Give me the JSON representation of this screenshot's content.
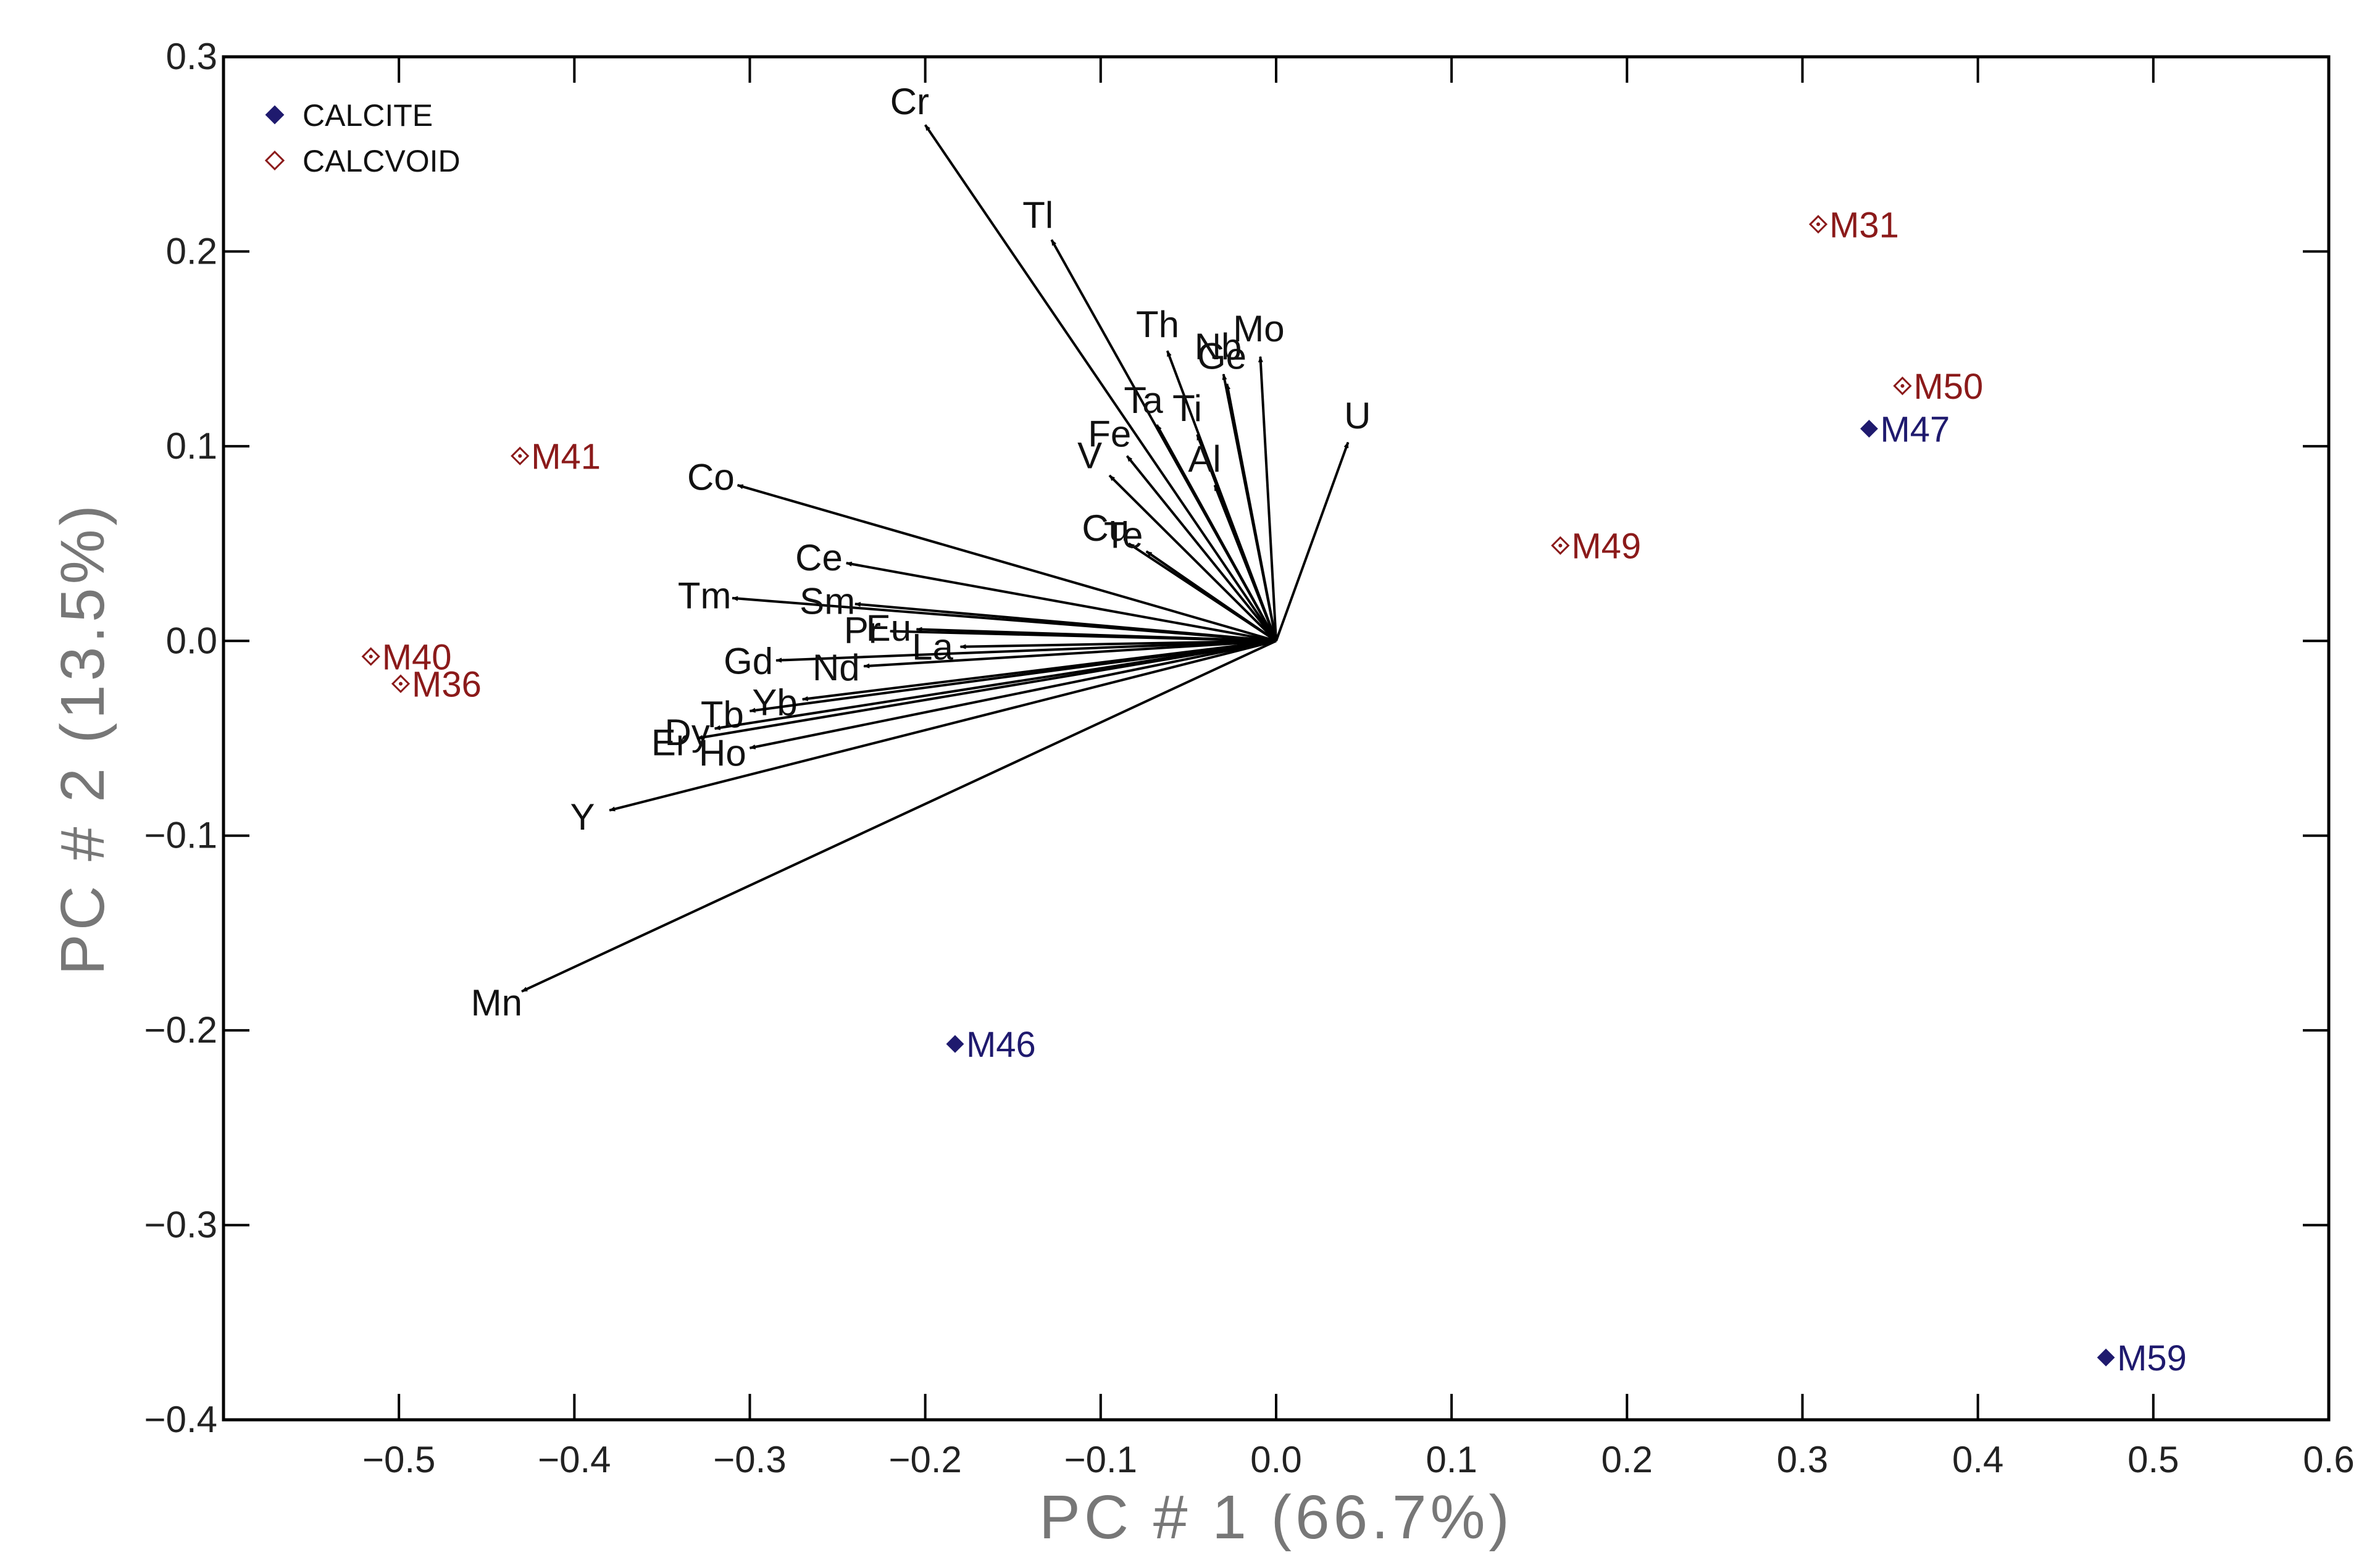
{
  "chart_data": {
    "type": "scatter",
    "subtype": "pca-biplot",
    "title": "",
    "xlabel": "PC # 1 (66.7%)",
    "ylabel": "PC # 2 (13.5%)",
    "xlim": [
      -0.6,
      0.6
    ],
    "ylim": [
      -0.4,
      0.3
    ],
    "xticks": [
      -0.5,
      -0.4,
      -0.3,
      -0.2,
      -0.1,
      0.0,
      0.1,
      0.2,
      0.3,
      0.4,
      0.5,
      0.6
    ],
    "xtick_labels": [
      "−0.5",
      "−0.4",
      "−0.3",
      "−0.2",
      "−0.1",
      "0.0",
      "0.1",
      "0.2",
      "0.3",
      "0.4",
      "0.5",
      "0.6"
    ],
    "yticks": [
      -0.4,
      -0.3,
      -0.2,
      -0.1,
      0.0,
      0.1,
      0.2,
      0.3
    ],
    "ytick_labels": [
      "−0.4",
      "−0.3",
      "−0.2",
      "−0.1",
      "0.0",
      "0.1",
      "0.2",
      "0.3"
    ],
    "grid": false,
    "legend_position": "top-left",
    "legend": [
      {
        "name": "CALCITE",
        "marker": "filled-diamond",
        "color": "#1f1a6e"
      },
      {
        "name": "CALCVOID",
        "marker": "open-diamond",
        "color": "#8b1a1a"
      }
    ],
    "series": [
      {
        "name": "CALCITE",
        "color": "#1f1a6e",
        "points": [
          {
            "label": "M47",
            "x": 0.338,
            "y": 0.109
          },
          {
            "label": "M46",
            "x": -0.183,
            "y": -0.207
          },
          {
            "label": "M59",
            "x": 0.473,
            "y": -0.368
          }
        ]
      },
      {
        "name": "CALCVOID",
        "color": "#8b1a1a",
        "points": [
          {
            "label": "M31",
            "x": 0.309,
            "y": 0.214
          },
          {
            "label": "M50",
            "x": 0.357,
            "y": 0.131
          },
          {
            "label": "M49",
            "x": 0.162,
            "y": 0.049
          },
          {
            "label": "M41",
            "x": -0.431,
            "y": 0.095
          },
          {
            "label": "M40",
            "x": -0.516,
            "y": -0.008
          },
          {
            "label": "M36",
            "x": -0.499,
            "y": -0.022
          }
        ]
      }
    ],
    "loadings": [
      {
        "label": "Cr",
        "x": -0.2,
        "y": 0.265
      },
      {
        "label": "Tl",
        "x": -0.128,
        "y": 0.206
      },
      {
        "label": "Th",
        "x": -0.062,
        "y": 0.149
      },
      {
        "label": "Nb",
        "x": -0.03,
        "y": 0.137
      },
      {
        "label": "Ge",
        "x": -0.028,
        "y": 0.132
      },
      {
        "label": "Mo",
        "x": -0.009,
        "y": 0.146
      },
      {
        "label": "U",
        "x": 0.041,
        "y": 0.102
      },
      {
        "label": "Ta",
        "x": -0.068,
        "y": 0.111
      },
      {
        "label": "Ti",
        "x": -0.045,
        "y": 0.106
      },
      {
        "label": "Fe",
        "x": -0.085,
        "y": 0.095
      },
      {
        "label": "V",
        "x": -0.095,
        "y": 0.085
      },
      {
        "label": "Al",
        "x": -0.035,
        "y": 0.08
      },
      {
        "label": "Cu",
        "x": -0.084,
        "y": 0.05
      },
      {
        "label": "Te",
        "x": -0.074,
        "y": 0.046
      },
      {
        "label": "Co",
        "x": -0.307,
        "y": 0.08
      },
      {
        "label": "Ce",
        "x": -0.245,
        "y": 0.04
      },
      {
        "label": "Tm",
        "x": -0.31,
        "y": 0.022
      },
      {
        "label": "Sm",
        "x": -0.24,
        "y": 0.019
      },
      {
        "label": "Pr",
        "x": -0.22,
        "y": 0.005
      },
      {
        "label": "Eu",
        "x": -0.205,
        "y": 0.006
      },
      {
        "label": "La",
        "x": -0.18,
        "y": -0.003
      },
      {
        "label": "Gd",
        "x": -0.285,
        "y": -0.01
      },
      {
        "label": "Nd",
        "x": -0.235,
        "y": -0.013
      },
      {
        "label": "Yb",
        "x": -0.27,
        "y": -0.03
      },
      {
        "label": "Tb",
        "x": -0.3,
        "y": -0.036
      },
      {
        "label": "Dy",
        "x": -0.32,
        "y": -0.045
      },
      {
        "label": "Er",
        "x": -0.33,
        "y": -0.05
      },
      {
        "label": "Ho",
        "x": -0.3,
        "y": -0.055
      },
      {
        "label": "Y",
        "x": -0.38,
        "y": -0.087
      },
      {
        "label": "Mn",
        "x": -0.43,
        "y": -0.18
      }
    ]
  }
}
